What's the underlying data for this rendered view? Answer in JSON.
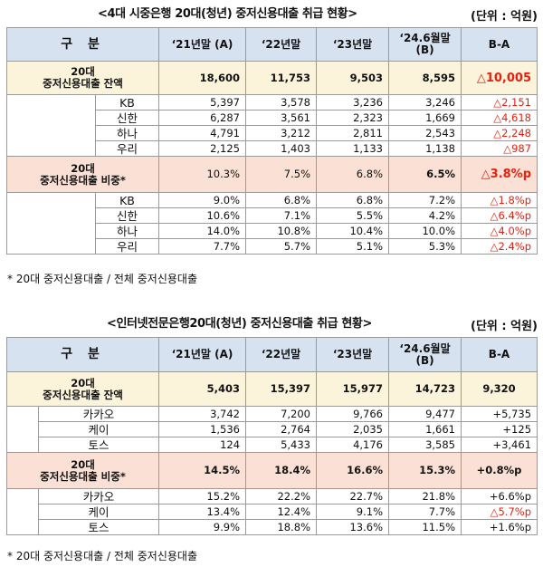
{
  "section1": {
    "title": "<4대 시중은행 20대(청년) 중저신용대출 취급 현황>",
    "unit": "(단위 : 억원)",
    "header": {
      "category": "구 분",
      "c21": "‘21년말 (A)",
      "c22": "‘22년말",
      "c23": "‘23년말",
      "c24": "‘24.6월말 (B)",
      "diff": "B-A"
    },
    "total": {
      "label1": "20대",
      "label2": "중저신용대출 잔액",
      "v21": "18,600",
      "v22": "11,753",
      "v23": "9,503",
      "v24": "8,595",
      "diff": "△10,005"
    },
    "total_rows": [
      {
        "name": "KB",
        "v21": "5,397",
        "v22": "3,578",
        "v23": "3,236",
        "v24": "3,246",
        "diff": "△2,151"
      },
      {
        "name": "신한",
        "v21": "6,287",
        "v22": "3,561",
        "v23": "2,323",
        "v24": "1,669",
        "diff": "△4,618"
      },
      {
        "name": "하나",
        "v21": "4,791",
        "v22": "3,212",
        "v23": "2,811",
        "v24": "2,543",
        "diff": "△2,248"
      },
      {
        "name": "우리",
        "v21": "2,125",
        "v22": "1,403",
        "v23": "1,133",
        "v24": "1,138",
        "diff": "△987"
      }
    ],
    "ratio": {
      "label1": "20대",
      "label2": "중저신용대출 비중*",
      "v21": "10.3%",
      "v22": "7.5%",
      "v23": "6.8%",
      "v24": "6.5%",
      "diff": "△3.8%p"
    },
    "ratio_rows": [
      {
        "name": "KB",
        "v21": "9.0%",
        "v22": "6.8%",
        "v23": "6.8%",
        "v24": "7.2%",
        "diff": "△1.8%p"
      },
      {
        "name": "신한",
        "v21": "10.6%",
        "v22": "7.1%",
        "v23": "5.5%",
        "v24": "4.2%",
        "diff": "△6.4%p"
      },
      {
        "name": "하나",
        "v21": "14.0%",
        "v22": "10.8%",
        "v23": "10.4%",
        "v24": "10.0%",
        "diff": "△4.0%p"
      },
      {
        "name": "우리",
        "v21": "7.7%",
        "v22": "5.7%",
        "v23": "5.1%",
        "v24": "5.3%",
        "diff": "△2.4%p"
      }
    ],
    "note": "* 20대 중저신용대출 / 전체 중저신용대출"
  },
  "section2": {
    "title": "<인터넷전문은행20대(청년) 중저신용대출 취급 현황>",
    "unit": "(단위 : 억원)",
    "header": {
      "category": "구 분",
      "c21": "‘21년말 (A)",
      "c22": "‘22년말",
      "c23": "‘23년말",
      "c24": "‘24.6월말 (B)",
      "diff": "B-A"
    },
    "total": {
      "label1": "20대",
      "label2": "중저신용대출 잔액",
      "v21": "5,403",
      "v22": "15,397",
      "v23": "15,977",
      "v24": "14,723",
      "diff": "9,320"
    },
    "total_rows": [
      {
        "name": "카카오",
        "v21": "3,742",
        "v22": "7,200",
        "v23": "9,766",
        "v24": "9,477",
        "diff": "+5,735"
      },
      {
        "name": "케이",
        "v21": "1,536",
        "v22": "2,764",
        "v23": "2,035",
        "v24": "1,661",
        "diff": "+125"
      },
      {
        "name": "토스",
        "v21": "124",
        "v22": "5,433",
        "v23": "4,176",
        "v24": "3,585",
        "diff": "+3,461"
      }
    ],
    "ratio": {
      "label1": "20대",
      "label2": "중저신용대출 비중*",
      "v21": "14.5%",
      "v22": "18.4%",
      "v23": "16.6%",
      "v24": "15.3%",
      "diff": "+0.8%p"
    },
    "ratio_rows": [
      {
        "name": "카카오",
        "v21": "15.2%",
        "v22": "22.2%",
        "v23": "22.7%",
        "v24": "21.8%",
        "diff": "+6.6%p"
      },
      {
        "name": "케이",
        "v21": "13.4%",
        "v22": "12.4%",
        "v23": "9.1%",
        "v24": "7.7%",
        "diff": "△5.7%p"
      },
      {
        "name": "토스",
        "v21": "9.9%",
        "v22": "18.8%",
        "v23": "13.6%",
        "v24": "11.5%",
        "diff": "+1.6%p"
      }
    ],
    "note": "* 20대 중저신용대출 / 전체 중저신용대출"
  },
  "colors": {
    "header_bg": "#d7e2f0",
    "total_bg": "#fbf3da",
    "ratio_bg": "#fbe1d5",
    "decrease_red": "#e8200f",
    "border": "#9a9a9a"
  }
}
